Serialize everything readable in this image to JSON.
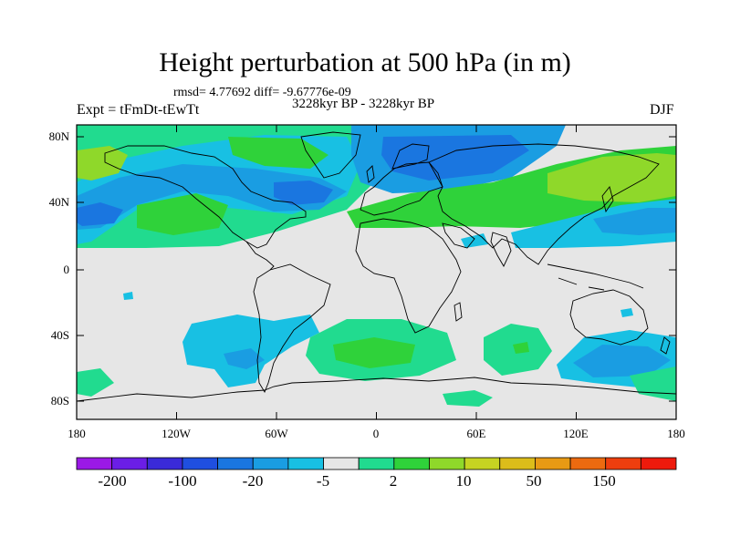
{
  "title": "Height perturbation at 500 hPa (in m)",
  "stats": "rmsd= 4.77692  diff= -9.67776e-09",
  "period": "3228kyr BP - 3228kyr BP",
  "experiment": "Expt = tFmDt-tEwTt",
  "season": "DJF",
  "lat_labels": [
    "80N",
    "40N",
    "0",
    "40S",
    "80S"
  ],
  "lon_labels": [
    "180",
    "120W",
    "60W",
    "0",
    "60E",
    "120E",
    "180"
  ],
  "colorbar": {
    "labels": [
      "-200",
      "-100",
      "-20",
      "-5",
      "2",
      "10",
      "50",
      "150"
    ],
    "colors": [
      "#9b19e6",
      "#6b1ee6",
      "#3a2ad8",
      "#1f4fe0",
      "#1a76e0",
      "#1a9de2",
      "#18c0e3",
      "#e6e6e6",
      "#21db8f",
      "#2fd23a",
      "#8fd82a",
      "#c6d322",
      "#dcbd1a",
      "#e89a14",
      "#ec6a10",
      "#ee3e0e",
      "#ee1a0c"
    ]
  },
  "palette": {
    "background": "#e6e6e6",
    "green_light": "#21db8f",
    "green": "#2fd23a",
    "yellow_green": "#8fd82a",
    "cyan": "#18c0e3",
    "blue_light": "#1a9de2",
    "blue": "#1a76e0",
    "coast": "#000000"
  }
}
